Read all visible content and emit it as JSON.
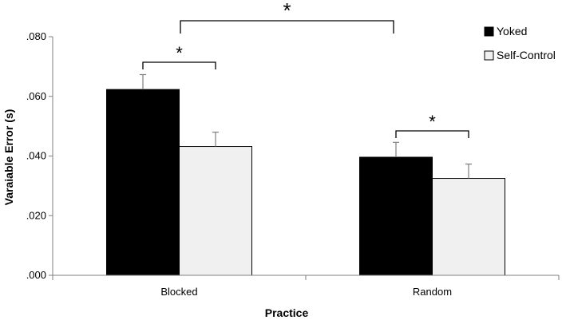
{
  "chart_data": {
    "type": "bar",
    "title": "",
    "xlabel": "Practice",
    "ylabel": "Varaiable Error (s)",
    "ylim": [
      0,
      0.08
    ],
    "yticks": [
      ".000",
      ".020",
      ".040",
      ".060",
      ".080"
    ],
    "ytick_values": [
      0,
      0.02,
      0.04,
      0.06,
      0.08
    ],
    "categories": [
      "Blocked",
      "Random"
    ],
    "series": [
      {
        "name": "Yoked",
        "color": "#000000",
        "values": [
          0.0623,
          0.0396
        ],
        "errors": [
          0.005,
          0.005
        ]
      },
      {
        "name": "Self-Control",
        "color": "#f0f0f0",
        "values": [
          0.0432,
          0.0325
        ],
        "errors": [
          0.0048,
          0.0048
        ]
      }
    ],
    "grid": false,
    "legend": "top-right",
    "annotations": {
      "blocked_star": "*",
      "random_star": "*",
      "practice_star": "*"
    }
  }
}
